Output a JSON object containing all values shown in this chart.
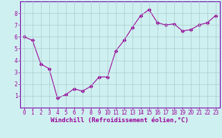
{
  "x": [
    0,
    1,
    2,
    3,
    4,
    5,
    6,
    7,
    8,
    9,
    10,
    11,
    12,
    13,
    14,
    15,
    16,
    17,
    18,
    19,
    20,
    21,
    22,
    23
  ],
  "y": [
    6.0,
    5.7,
    3.7,
    3.3,
    0.8,
    1.1,
    1.6,
    1.4,
    1.8,
    2.6,
    2.6,
    4.8,
    5.7,
    6.8,
    7.8,
    8.3,
    7.2,
    7.0,
    7.1,
    6.5,
    6.6,
    7.0,
    7.2,
    7.8
  ],
  "line_color": "#990099",
  "marker": "D",
  "marker_size": 2.5,
  "bg_color": "#cff0f0",
  "grid_color": "#aacccc",
  "xlabel": "Windchill (Refroidissement éolien,°C)",
  "xlabel_color": "#990099",
  "xlim": [
    -0.5,
    23.5
  ],
  "ylim": [
    0,
    9
  ],
  "yticks": [
    1,
    2,
    3,
    4,
    5,
    6,
    7,
    8
  ],
  "xticks": [
    0,
    1,
    2,
    3,
    4,
    5,
    6,
    7,
    8,
    9,
    10,
    11,
    12,
    13,
    14,
    15,
    16,
    17,
    18,
    19,
    20,
    21,
    22,
    23
  ],
  "tick_color": "#990099",
  "axis_color": "#7700aa",
  "tick_fontsize": 5.5,
  "xlabel_fontsize": 6.5
}
